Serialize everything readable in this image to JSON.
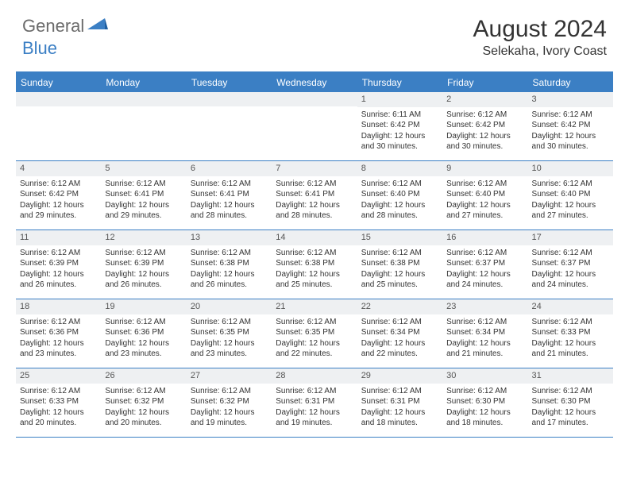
{
  "logo": {
    "text1": "General",
    "text2": "Blue"
  },
  "title": "August 2024",
  "location": "Selekaha, Ivory Coast",
  "colors": {
    "accent": "#3b7fc4",
    "daynum_bg": "#eef0f2",
    "text": "#333333",
    "logo_gray": "#6b6b6b"
  },
  "dow": [
    "Sunday",
    "Monday",
    "Tuesday",
    "Wednesday",
    "Thursday",
    "Friday",
    "Saturday"
  ],
  "weeks": [
    [
      {
        "n": "",
        "lines": []
      },
      {
        "n": "",
        "lines": []
      },
      {
        "n": "",
        "lines": []
      },
      {
        "n": "",
        "lines": []
      },
      {
        "n": "1",
        "lines": [
          "Sunrise: 6:11 AM",
          "Sunset: 6:42 PM",
          "Daylight: 12 hours and 30 minutes."
        ]
      },
      {
        "n": "2",
        "lines": [
          "Sunrise: 6:12 AM",
          "Sunset: 6:42 PM",
          "Daylight: 12 hours and 30 minutes."
        ]
      },
      {
        "n": "3",
        "lines": [
          "Sunrise: 6:12 AM",
          "Sunset: 6:42 PM",
          "Daylight: 12 hours and 30 minutes."
        ]
      }
    ],
    [
      {
        "n": "4",
        "lines": [
          "Sunrise: 6:12 AM",
          "Sunset: 6:42 PM",
          "Daylight: 12 hours and 29 minutes."
        ]
      },
      {
        "n": "5",
        "lines": [
          "Sunrise: 6:12 AM",
          "Sunset: 6:41 PM",
          "Daylight: 12 hours and 29 minutes."
        ]
      },
      {
        "n": "6",
        "lines": [
          "Sunrise: 6:12 AM",
          "Sunset: 6:41 PM",
          "Daylight: 12 hours and 28 minutes."
        ]
      },
      {
        "n": "7",
        "lines": [
          "Sunrise: 6:12 AM",
          "Sunset: 6:41 PM",
          "Daylight: 12 hours and 28 minutes."
        ]
      },
      {
        "n": "8",
        "lines": [
          "Sunrise: 6:12 AM",
          "Sunset: 6:40 PM",
          "Daylight: 12 hours and 28 minutes."
        ]
      },
      {
        "n": "9",
        "lines": [
          "Sunrise: 6:12 AM",
          "Sunset: 6:40 PM",
          "Daylight: 12 hours and 27 minutes."
        ]
      },
      {
        "n": "10",
        "lines": [
          "Sunrise: 6:12 AM",
          "Sunset: 6:40 PM",
          "Daylight: 12 hours and 27 minutes."
        ]
      }
    ],
    [
      {
        "n": "11",
        "lines": [
          "Sunrise: 6:12 AM",
          "Sunset: 6:39 PM",
          "Daylight: 12 hours and 26 minutes."
        ]
      },
      {
        "n": "12",
        "lines": [
          "Sunrise: 6:12 AM",
          "Sunset: 6:39 PM",
          "Daylight: 12 hours and 26 minutes."
        ]
      },
      {
        "n": "13",
        "lines": [
          "Sunrise: 6:12 AM",
          "Sunset: 6:38 PM",
          "Daylight: 12 hours and 26 minutes."
        ]
      },
      {
        "n": "14",
        "lines": [
          "Sunrise: 6:12 AM",
          "Sunset: 6:38 PM",
          "Daylight: 12 hours and 25 minutes."
        ]
      },
      {
        "n": "15",
        "lines": [
          "Sunrise: 6:12 AM",
          "Sunset: 6:38 PM",
          "Daylight: 12 hours and 25 minutes."
        ]
      },
      {
        "n": "16",
        "lines": [
          "Sunrise: 6:12 AM",
          "Sunset: 6:37 PM",
          "Daylight: 12 hours and 24 minutes."
        ]
      },
      {
        "n": "17",
        "lines": [
          "Sunrise: 6:12 AM",
          "Sunset: 6:37 PM",
          "Daylight: 12 hours and 24 minutes."
        ]
      }
    ],
    [
      {
        "n": "18",
        "lines": [
          "Sunrise: 6:12 AM",
          "Sunset: 6:36 PM",
          "Daylight: 12 hours and 23 minutes."
        ]
      },
      {
        "n": "19",
        "lines": [
          "Sunrise: 6:12 AM",
          "Sunset: 6:36 PM",
          "Daylight: 12 hours and 23 minutes."
        ]
      },
      {
        "n": "20",
        "lines": [
          "Sunrise: 6:12 AM",
          "Sunset: 6:35 PM",
          "Daylight: 12 hours and 23 minutes."
        ]
      },
      {
        "n": "21",
        "lines": [
          "Sunrise: 6:12 AM",
          "Sunset: 6:35 PM",
          "Daylight: 12 hours and 22 minutes."
        ]
      },
      {
        "n": "22",
        "lines": [
          "Sunrise: 6:12 AM",
          "Sunset: 6:34 PM",
          "Daylight: 12 hours and 22 minutes."
        ]
      },
      {
        "n": "23",
        "lines": [
          "Sunrise: 6:12 AM",
          "Sunset: 6:34 PM",
          "Daylight: 12 hours and 21 minutes."
        ]
      },
      {
        "n": "24",
        "lines": [
          "Sunrise: 6:12 AM",
          "Sunset: 6:33 PM",
          "Daylight: 12 hours and 21 minutes."
        ]
      }
    ],
    [
      {
        "n": "25",
        "lines": [
          "Sunrise: 6:12 AM",
          "Sunset: 6:33 PM",
          "Daylight: 12 hours and 20 minutes."
        ]
      },
      {
        "n": "26",
        "lines": [
          "Sunrise: 6:12 AM",
          "Sunset: 6:32 PM",
          "Daylight: 12 hours and 20 minutes."
        ]
      },
      {
        "n": "27",
        "lines": [
          "Sunrise: 6:12 AM",
          "Sunset: 6:32 PM",
          "Daylight: 12 hours and 19 minutes."
        ]
      },
      {
        "n": "28",
        "lines": [
          "Sunrise: 6:12 AM",
          "Sunset: 6:31 PM",
          "Daylight: 12 hours and 19 minutes."
        ]
      },
      {
        "n": "29",
        "lines": [
          "Sunrise: 6:12 AM",
          "Sunset: 6:31 PM",
          "Daylight: 12 hours and 18 minutes."
        ]
      },
      {
        "n": "30",
        "lines": [
          "Sunrise: 6:12 AM",
          "Sunset: 6:30 PM",
          "Daylight: 12 hours and 18 minutes."
        ]
      },
      {
        "n": "31",
        "lines": [
          "Sunrise: 6:12 AM",
          "Sunset: 6:30 PM",
          "Daylight: 12 hours and 17 minutes."
        ]
      }
    ]
  ]
}
